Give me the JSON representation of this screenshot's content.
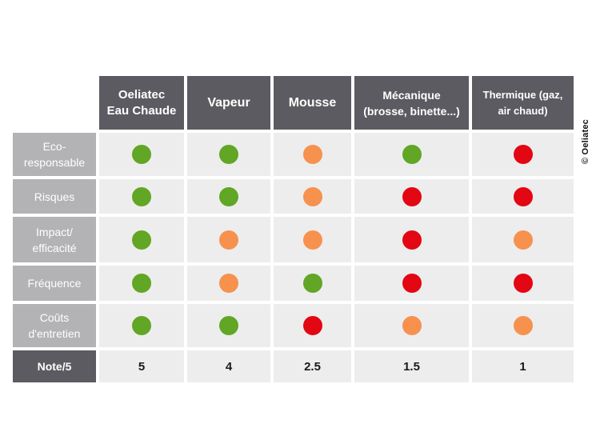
{
  "columns": [
    {
      "label": "Oeliatec\nEau Chaude"
    },
    {
      "label": "Vapeur"
    },
    {
      "label": "Mousse"
    },
    {
      "label": "Mécanique\n(brosse, binette...)"
    },
    {
      "label": "Thermique (gaz,\nair chaud)"
    }
  ],
  "rows": [
    {
      "label": "Eco-\nresponsable",
      "ratings": [
        "green",
        "green",
        "orange",
        "green",
        "red"
      ]
    },
    {
      "label": "Risques",
      "ratings": [
        "green",
        "green",
        "orange",
        "red",
        "red"
      ]
    },
    {
      "label": "Impact/\nefficacité",
      "ratings": [
        "green",
        "orange",
        "orange",
        "red",
        "orange"
      ]
    },
    {
      "label": "Fréquence",
      "ratings": [
        "green",
        "orange",
        "green",
        "red",
        "red"
      ]
    },
    {
      "label": "Coûts\nd'entretien",
      "ratings": [
        "green",
        "green",
        "red",
        "orange",
        "orange"
      ]
    }
  ],
  "score_row": {
    "label": "Note/5",
    "values": [
      "5",
      "4",
      "2.5",
      "1.5",
      "1"
    ]
  },
  "copyright": "© Oeliatec",
  "colors": {
    "green": "#61a624",
    "orange": "#f7914e",
    "red": "#e30613",
    "header_dark": "#5c5b61",
    "row_header_light": "#b3b2b4",
    "cell_bg": "#ededed"
  }
}
